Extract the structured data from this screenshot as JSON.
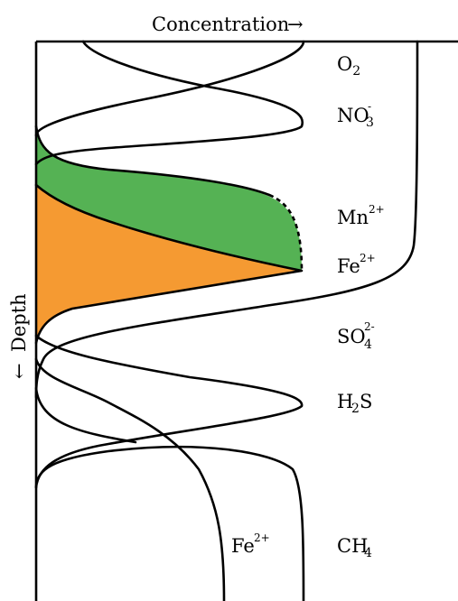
{
  "axes": {
    "x_label": "Concentration",
    "x_arrow": "→",
    "y_label": "Depth",
    "y_arrow": "←"
  },
  "species": [
    {
      "id": "o2",
      "base": "O",
      "sub": "2",
      "sup": ""
    },
    {
      "id": "no3",
      "base": "NO",
      "sub": "3",
      "sup": "-"
    },
    {
      "id": "mn",
      "base": "Mn",
      "sub": "",
      "sup": "2+"
    },
    {
      "id": "fe",
      "base": "Fe",
      "sub": "",
      "sup": "2+"
    },
    {
      "id": "so4",
      "base": "SO",
      "sub": "4",
      "sup": "2-"
    },
    {
      "id": "h2s",
      "base": "H",
      "sub": "2",
      "sup": "",
      "tail": "S"
    },
    {
      "id": "fe_deep",
      "base": "Fe",
      "sub": "",
      "sup": "2+"
    },
    {
      "id": "ch4",
      "base": "CH",
      "sub": "4",
      "sup": ""
    }
  ],
  "colors": {
    "mn_fill": "#55b254",
    "fe_fill": "#f59a32",
    "line": "#000000"
  }
}
